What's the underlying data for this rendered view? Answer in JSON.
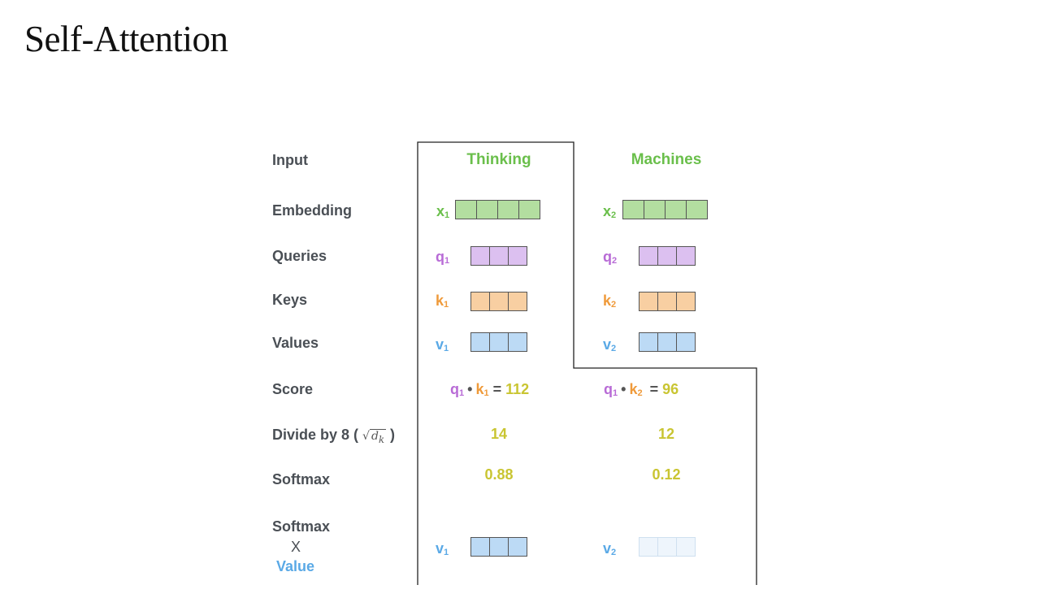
{
  "title": "Self-Attention",
  "row_labels": {
    "input": "Input",
    "embedding": "Embedding",
    "queries": "Queries",
    "keys": "Keys",
    "values": "Values",
    "score": "Score",
    "divide": "Divide by 8 (",
    "divide_sqrt": "d",
    "divide_sqrt_sub": "k",
    "divide_close": ")",
    "softmax": "Softmax",
    "softmax_value_1": "Softmax",
    "softmax_value_2": "X",
    "softmax_value_3": "Value"
  },
  "words": {
    "w1": "Thinking",
    "w2": "Machines"
  },
  "symbols": {
    "x": "x",
    "q": "q",
    "k": "k",
    "v": "v",
    "i1": "1",
    "i2": "2"
  },
  "score": {
    "s1_value": "112",
    "s2_value": "96",
    "dot": "•",
    "eq": "="
  },
  "divide": {
    "d1": "14",
    "d2": "12"
  },
  "softmax": {
    "s1": "0.88",
    "s2": "0.12"
  },
  "colors": {
    "green": "#6abf4b",
    "green_fill": "#b3dea0",
    "purple": "#b86bd6",
    "purple_fill": "#dcc0f0",
    "orange": "#ef9a3a",
    "orange_fill": "#f8cfa2",
    "blue": "#5aa9e6",
    "blue_fill": "#bcdaf5",
    "blue_faint": "#eef5fc",
    "yellow": "#c9c532",
    "frame": "#222222"
  }
}
